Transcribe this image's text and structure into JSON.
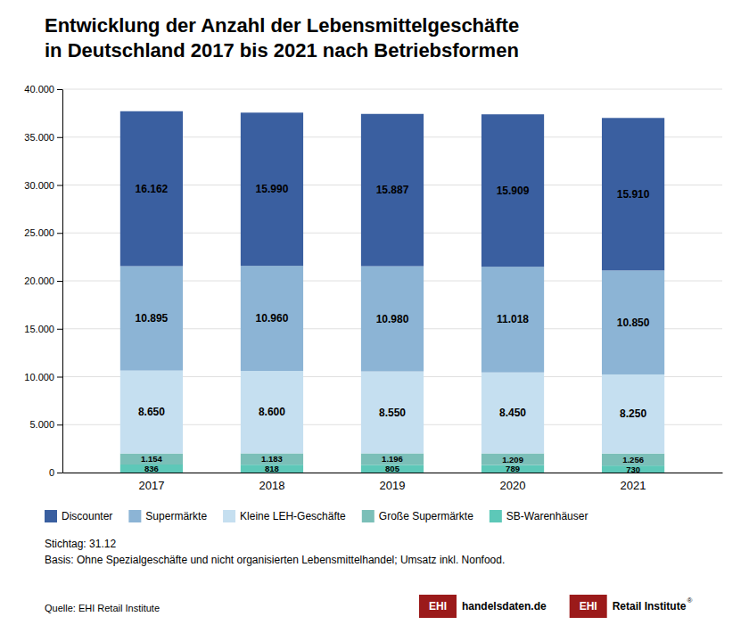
{
  "chart_data": {
    "type": "bar",
    "stacked": true,
    "data_labels": true,
    "grid": true,
    "title": "Entwicklung der Anzahl der Lebensmittelgeschäfte",
    "subtitle": "in Deutschland 2017 bis 2021 nach Betriebsformen",
    "categories": [
      "2017",
      "2018",
      "2019",
      "2020",
      "2021"
    ],
    "series": [
      {
        "name": "SB-Warenhäuser",
        "color": "#5dc8b8",
        "values": [
          836,
          818,
          805,
          789,
          730
        ],
        "value_labels": [
          "836",
          "818",
          "805",
          "789",
          "730"
        ]
      },
      {
        "name": "Große Supermärkte",
        "color": "#7bbfb8",
        "values": [
          1154,
          1183,
          1196,
          1209,
          1256
        ],
        "value_labels": [
          "1.154",
          "1.183",
          "1.196",
          "1.209",
          "1.256"
        ]
      },
      {
        "name": "Kleine LEH-Geschäfte",
        "color": "#c5dff0",
        "values": [
          8650,
          8600,
          8550,
          8450,
          8250
        ],
        "value_labels": [
          "8.650",
          "8.600",
          "8.550",
          "8.450",
          "8.250"
        ]
      },
      {
        "name": "Supermärkte",
        "color": "#8cb4d5",
        "values": [
          10895,
          10960,
          10980,
          11018,
          10850
        ],
        "value_labels": [
          "10.895",
          "10.960",
          "10.980",
          "11.018",
          "10.850"
        ]
      },
      {
        "name": "Discounter",
        "color": "#3a5fa0",
        "values": [
          16162,
          15990,
          15887,
          15909,
          15910
        ],
        "value_labels": [
          "16.162",
          "15.990",
          "15.887",
          "15.909",
          "15.910"
        ]
      }
    ],
    "ylim": [
      0,
      40000
    ],
    "yticks": [
      0,
      {
        "value": 5000,
        "label": "5.000"
      },
      {
        "value": 10000,
        "label": "10.000"
      },
      {
        "value": 15000,
        "label": "15.000"
      },
      {
        "value": 20000,
        "label": "20.000"
      },
      {
        "value": 25000,
        "label": "25.000"
      },
      {
        "value": 30000,
        "label": "30.000"
      },
      {
        "value": 35000,
        "label": "35.000"
      },
      {
        "value": 40000,
        "label": "40.000"
      }
    ],
    "annotations": [
      {
        "text": "Stichtag: 31.12"
      },
      {
        "text": "Basis: Ohne Spezialgeschäfte und nicht organisierten Lebensmittelhandel; Umsatz inkl. Nonfood."
      },
      {
        "text": "Quelle: EHI Retail Institute"
      },
      {
        "text": "EHI",
        "color": "#9b1a1a"
      },
      {
        "text": "handelsdaten.de"
      },
      {
        "text": "EHI",
        "color": "#9b1a1a"
      },
      {
        "text": "Retail Institute"
      },
      {
        "text": "®"
      }
    ]
  }
}
